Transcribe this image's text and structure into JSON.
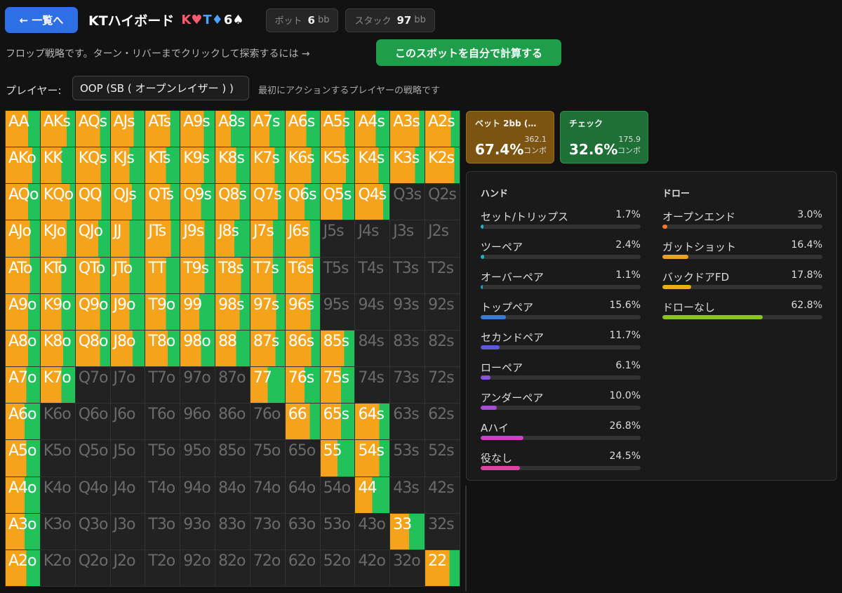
{
  "header": {
    "back_label": "← 一覧へ",
    "board_title": "KTハイボード",
    "board_cards": [
      {
        "text": "K♥",
        "color": "#ff5a6e"
      },
      {
        "text": "T♦",
        "color": "#4aa3ff"
      },
      {
        "text": "6♠",
        "color": "#ffffff"
      }
    ],
    "pot_label": "ポット",
    "pot_value": "6",
    "stack_label": "スタック",
    "stack_value": "97",
    "unit": "bb"
  },
  "info_text": "フロップ戦略です。ターン・リバーまでクリックして探索するには →",
  "calc_button": "このスポットを自分で計算する",
  "player": {
    "label": "プレイヤー:",
    "selected": "OOP (SB ( オープンレイザー ) )",
    "description": "最初にアクションするプレイヤーの戦略です"
  },
  "actions": [
    {
      "name": "ベット 2bb (…",
      "percent": "67.4%",
      "combos": "362.1",
      "combos_unit": "コンボ"
    },
    {
      "name": "チェック",
      "percent": "32.6%",
      "combos": "175.9",
      "combos_unit": "コンボ"
    }
  ],
  "colors": {
    "bet": "#f5a31a",
    "check": "#22c25a"
  },
  "matrix": {
    "rows": [
      [
        "AA",
        "AKs",
        "AQs",
        "AJs",
        "ATs",
        "A9s",
        "A8s",
        "A7s",
        "A6s",
        "A5s",
        "A4s",
        "A3s",
        "A2s"
      ],
      [
        "AKo",
        "KK",
        "KQs",
        "KJs",
        "KTs",
        "K9s",
        "K8s",
        "K7s",
        "K6s",
        "K5s",
        "K4s",
        "K3s",
        "K2s"
      ],
      [
        "AQo",
        "KQo",
        "QQ",
        "QJs",
        "QTs",
        "Q9s",
        "Q8s",
        "Q7s",
        "Q6s",
        "Q5s",
        "Q4s",
        "Q3s",
        "Q2s"
      ],
      [
        "AJo",
        "KJo",
        "QJo",
        "JJ",
        "JTs",
        "J9s",
        "J8s",
        "J7s",
        "J6s",
        "J5s",
        "J4s",
        "J3s",
        "J2s"
      ],
      [
        "ATo",
        "KTo",
        "QTo",
        "JTo",
        "TT",
        "T9s",
        "T8s",
        "T7s",
        "T6s",
        "T5s",
        "T4s",
        "T3s",
        "T2s"
      ],
      [
        "A9o",
        "K9o",
        "Q9o",
        "J9o",
        "T9o",
        "99",
        "98s",
        "97s",
        "96s",
        "95s",
        "94s",
        "93s",
        "92s"
      ],
      [
        "A8o",
        "K8o",
        "Q8o",
        "J8o",
        "T8o",
        "98o",
        "88",
        "87s",
        "86s",
        "85s",
        "84s",
        "83s",
        "82s"
      ],
      [
        "A7o",
        "K7o",
        "Q7o",
        "J7o",
        "T7o",
        "97o",
        "87o",
        "77",
        "76s",
        "75s",
        "74s",
        "73s",
        "72s"
      ],
      [
        "A6o",
        "K6o",
        "Q6o",
        "J6o",
        "T6o",
        "96o",
        "86o",
        "76o",
        "66",
        "65s",
        "64s",
        "63s",
        "62s"
      ],
      [
        "A5o",
        "K5o",
        "Q5o",
        "J5o",
        "T5o",
        "95o",
        "85o",
        "75o",
        "65o",
        "55",
        "54s",
        "53s",
        "52s"
      ],
      [
        "A4o",
        "K4o",
        "Q4o",
        "J4o",
        "T4o",
        "94o",
        "84o",
        "74o",
        "64o",
        "54o",
        "44",
        "43s",
        "42s"
      ],
      [
        "A3o",
        "K3o",
        "Q3o",
        "J3o",
        "T3o",
        "93o",
        "83o",
        "73o",
        "63o",
        "53o",
        "43o",
        "33",
        "32s"
      ],
      [
        "A2o",
        "K2o",
        "Q2o",
        "J2o",
        "T2o",
        "92o",
        "82o",
        "72o",
        "62o",
        "52o",
        "42o",
        "32o",
        "22"
      ]
    ],
    "bet_freq": [
      [
        0.65,
        0.75,
        0.7,
        0.68,
        0.72,
        0.68,
        0.45,
        0.55,
        0.6,
        0.72,
        0.6,
        0.85,
        0.75
      ],
      [
        0.78,
        0.6,
        0.72,
        0.55,
        0.6,
        0.68,
        0.6,
        0.7,
        0.75,
        0.75,
        0.68,
        0.72,
        0.85
      ],
      [
        0.65,
        0.85,
        0.75,
        0.62,
        0.72,
        0.6,
        0.7,
        0.8,
        0.55,
        0.65,
        0.82,
        0,
        0
      ],
      [
        0.7,
        0.75,
        0.65,
        0.55,
        0.75,
        0.7,
        0.55,
        0.65,
        0.7,
        0,
        0,
        0,
        0
      ],
      [
        0.7,
        0.6,
        0.7,
        0.55,
        0.6,
        0.7,
        0.75,
        0.65,
        0.8,
        0,
        0,
        0,
        0
      ],
      [
        0.65,
        0.6,
        0.7,
        0.55,
        0.6,
        0.55,
        0.7,
        0.75,
        0.72,
        0,
        0,
        0,
        0
      ],
      [
        0.65,
        0.65,
        0.7,
        0.65,
        0.65,
        0.6,
        0.6,
        0.72,
        0.75,
        0.7,
        0,
        0,
        0
      ],
      [
        0.6,
        0.6,
        0,
        0,
        0,
        0,
        0,
        0.5,
        0.55,
        0.6,
        0,
        0,
        0
      ],
      [
        0.55,
        0,
        0,
        0,
        0,
        0,
        0,
        0,
        0.7,
        0.6,
        0.7,
        0,
        0
      ],
      [
        0.6,
        0,
        0,
        0,
        0,
        0,
        0,
        0,
        0,
        0.5,
        0.7,
        0,
        0
      ],
      [
        0.55,
        0,
        0,
        0,
        0,
        0,
        0,
        0,
        0,
        0,
        0.5,
        0,
        0
      ],
      [
        0.55,
        0,
        0,
        0,
        0,
        0,
        0,
        0,
        0,
        0,
        0,
        0.55,
        0
      ],
      [
        0.6,
        0,
        0,
        0,
        0,
        0,
        0,
        0,
        0,
        0,
        0,
        0,
        0.7
      ]
    ]
  },
  "hand_section": {
    "title": "ハンド",
    "items": [
      {
        "label": "セット/トリップス",
        "value": "1.7%",
        "pct": 1.7,
        "color": "#20b2c8"
      },
      {
        "label": "ツーペア",
        "value": "2.4%",
        "pct": 2.4,
        "color": "#20b2c8"
      },
      {
        "label": "オーバーペア",
        "value": "1.1%",
        "pct": 1.1,
        "color": "#20a0c8"
      },
      {
        "label": "トップペア",
        "value": "15.6%",
        "pct": 15.6,
        "color": "#3a7bd5"
      },
      {
        "label": "セカンドペア",
        "value": "11.7%",
        "pct": 11.7,
        "color": "#5a5ad8"
      },
      {
        "label": "ローペア",
        "value": "6.1%",
        "pct": 6.1,
        "color": "#8a55d8"
      },
      {
        "label": "アンダーペア",
        "value": "10.0%",
        "pct": 10.0,
        "color": "#a64ad8"
      },
      {
        "label": "Aハイ",
        "value": "26.8%",
        "pct": 26.8,
        "color": "#d040c8"
      },
      {
        "label": "役なし",
        "value": "24.5%",
        "pct": 24.5,
        "color": "#e040a0"
      }
    ]
  },
  "draw_section": {
    "title": "ドロー",
    "items": [
      {
        "label": "オープンエンド",
        "value": "3.0%",
        "pct": 3.0,
        "color": "#f07a2a"
      },
      {
        "label": "ガットショット",
        "value": "16.4%",
        "pct": 16.4,
        "color": "#f0a020"
      },
      {
        "label": "バックドアFD",
        "value": "17.8%",
        "pct": 17.8,
        "color": "#e8b010"
      },
      {
        "label": "ドローなし",
        "value": "62.8%",
        "pct": 62.8,
        "color": "#8ac420"
      }
    ]
  }
}
